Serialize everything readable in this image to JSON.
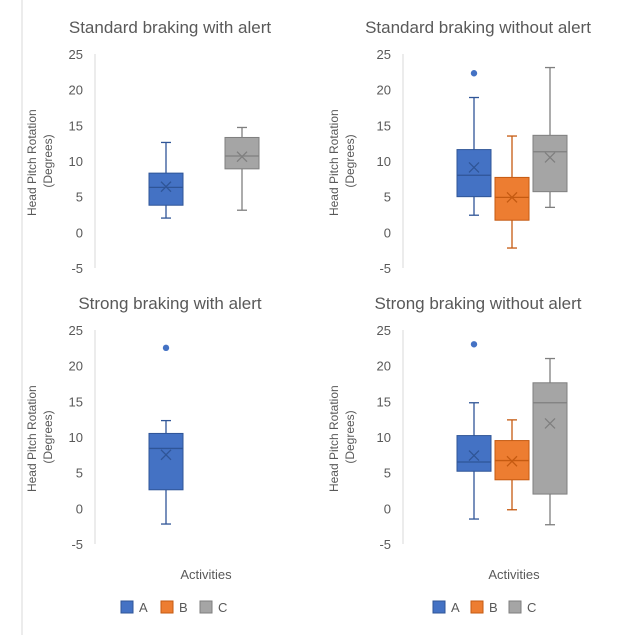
{
  "chart_data": [
    {
      "type": "box",
      "title": "Standard braking with alert",
      "ylabel": "Head Pitch Rotation (Degrees)",
      "xlabel": "",
      "ylim": [
        -5,
        25
      ],
      "yticks": [
        "25",
        "20",
        "15",
        "10",
        "5",
        "0",
        "-5"
      ],
      "boxes": [
        {
          "name": "A",
          "min": 2.0,
          "q1": 3.8,
          "median": 6.3,
          "q3": 8.3,
          "max": 12.6,
          "mean": 6.4,
          "outliers": []
        },
        {
          "name": "C",
          "min": 3.1,
          "q1": 8.9,
          "median": 10.7,
          "q3": 13.3,
          "max": 14.7,
          "mean": 10.6,
          "outliers": []
        }
      ]
    },
    {
      "type": "box",
      "title": "Standard braking without alert",
      "ylabel": "Head Pitch Rotation (Degrees)",
      "xlabel": "",
      "ylim": [
        -5,
        25
      ],
      "yticks": [
        "25",
        "20",
        "15",
        "10",
        "5",
        "0",
        "-5"
      ],
      "boxes": [
        {
          "name": "A",
          "min": 2.4,
          "q1": 5.0,
          "median": 8.0,
          "q3": 11.6,
          "max": 18.9,
          "mean": 9.1,
          "outliers": [
            22.3
          ]
        },
        {
          "name": "B",
          "min": -2.2,
          "q1": 1.7,
          "median": 4.9,
          "q3": 7.7,
          "max": 13.5,
          "mean": 4.9,
          "outliers": []
        },
        {
          "name": "C",
          "min": 3.5,
          "q1": 5.7,
          "median": 11.3,
          "q3": 13.6,
          "max": 23.1,
          "mean": 10.5,
          "outliers": []
        }
      ]
    },
    {
      "type": "box",
      "title": "Strong braking with alert",
      "ylabel": "Head Pitch Rotation (Degrees)",
      "xlabel": "Activities",
      "ylim": [
        -5,
        25
      ],
      "yticks": [
        "25",
        "20",
        "15",
        "10",
        "5",
        "0",
        "-5"
      ],
      "boxes": [
        {
          "name": "A",
          "min": -2.2,
          "q1": 2.6,
          "median": 8.4,
          "q3": 10.5,
          "max": 12.3,
          "mean": 7.5,
          "outliers": [
            22.5
          ]
        }
      ]
    },
    {
      "type": "box",
      "title": "Strong braking without alert",
      "ylabel": "Head Pitch Rotation (Degrees)",
      "xlabel": "Activities",
      "ylim": [
        -5,
        25
      ],
      "yticks": [
        "25",
        "20",
        "15",
        "10",
        "5",
        "0",
        "-5"
      ],
      "boxes": [
        {
          "name": "A",
          "min": -1.5,
          "q1": 5.2,
          "median": 6.5,
          "q3": 10.2,
          "max": 14.8,
          "mean": 7.4,
          "outliers": [
            23.0
          ]
        },
        {
          "name": "B",
          "min": -0.2,
          "q1": 4.0,
          "median": 6.7,
          "q3": 9.5,
          "max": 12.4,
          "mean": 6.6,
          "outliers": []
        },
        {
          "name": "C",
          "min": -2.3,
          "q1": 2.0,
          "median": 14.8,
          "q3": 17.6,
          "max": 21.0,
          "mean": 11.9,
          "outliers": []
        }
      ]
    }
  ],
  "legend": {
    "position": "bottom",
    "items": [
      {
        "label": "A",
        "color": "#4472c4"
      },
      {
        "label": "B",
        "color": "#ed7d31"
      },
      {
        "label": "C",
        "color": "#a5a5a5"
      }
    ]
  },
  "styles": {
    "box_colors": {
      "A": "#4472c4",
      "B": "#ed7d31",
      "C": "#a5a5a5"
    },
    "box_line_colors": {
      "A": "#2f5597",
      "B": "#c55a11",
      "C": "#7f7f7f"
    }
  }
}
